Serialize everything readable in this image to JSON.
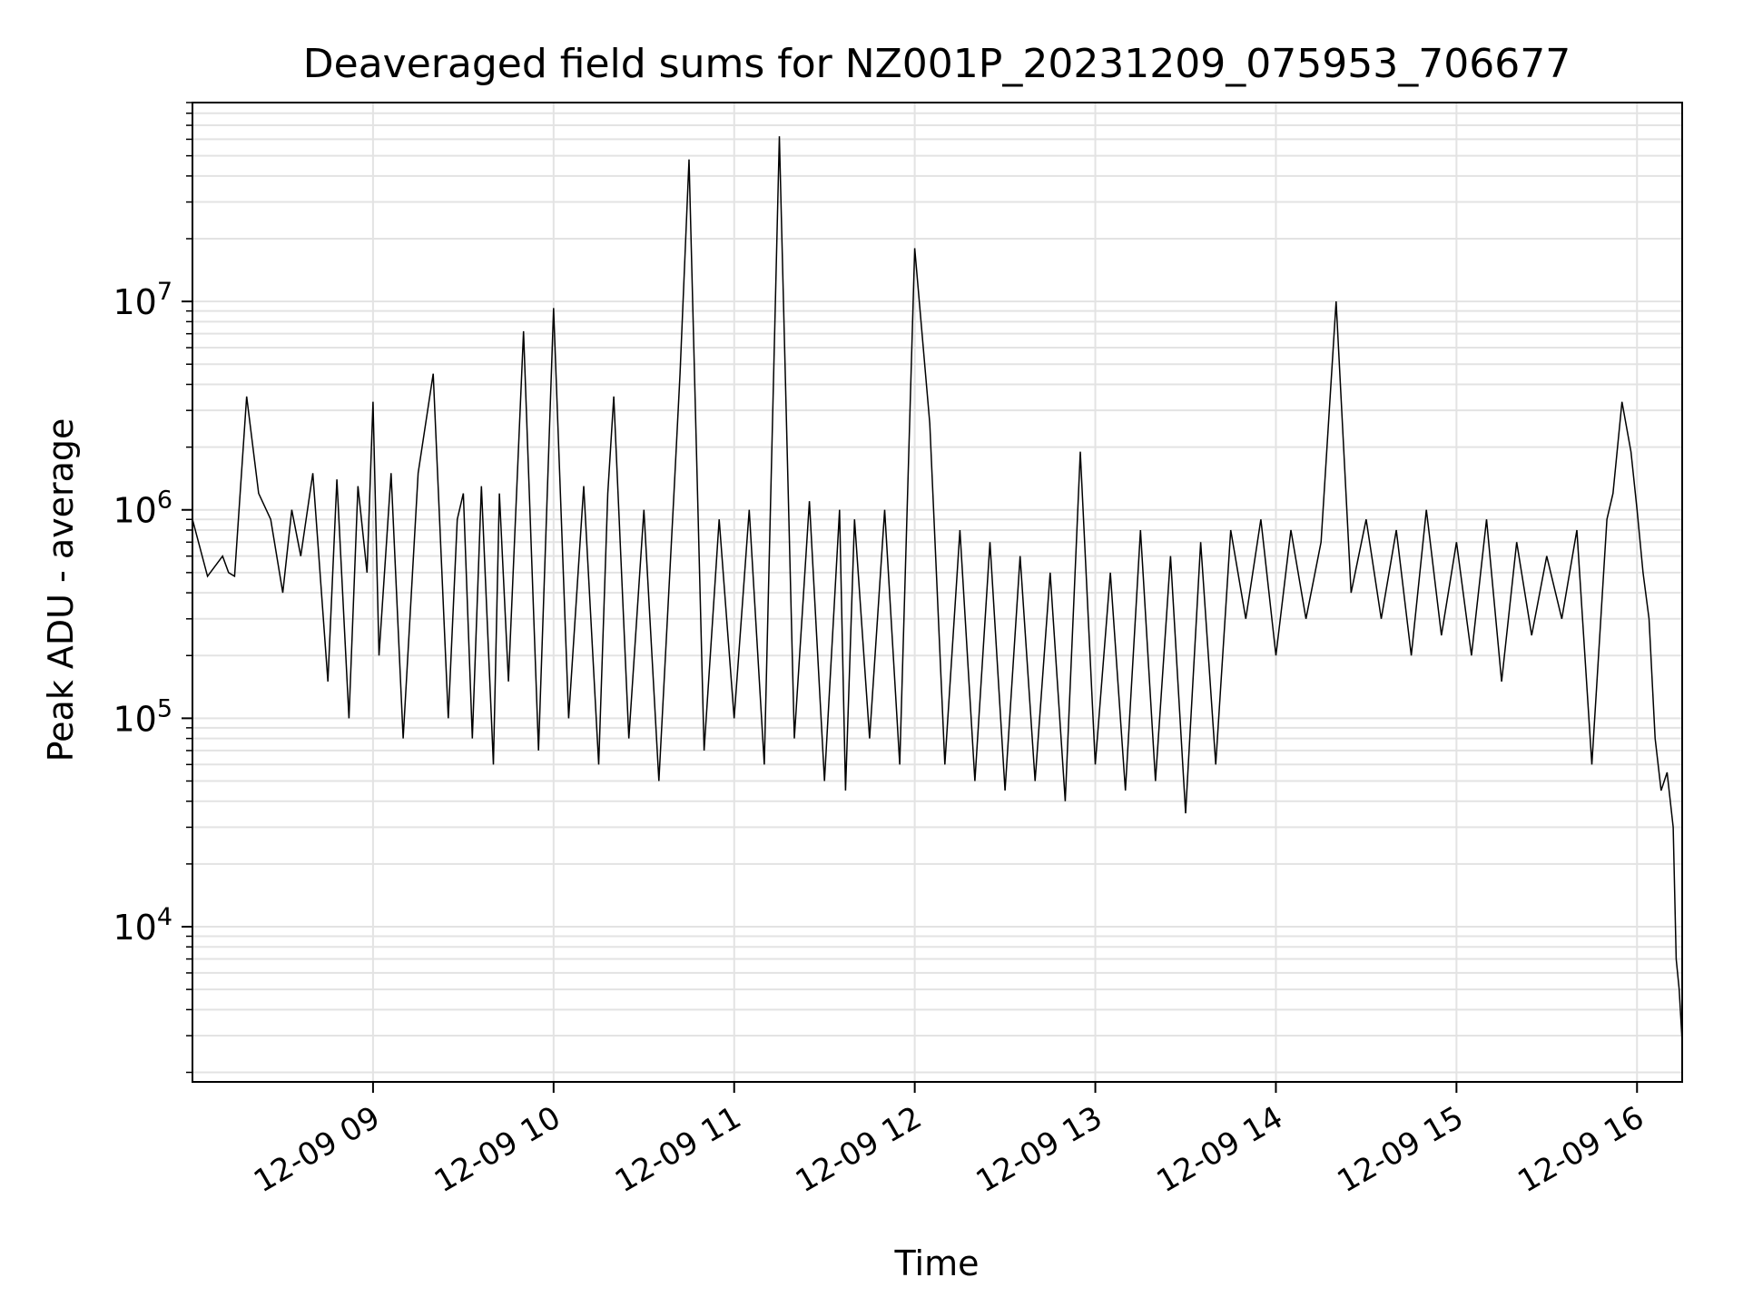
{
  "chart_data": {
    "type": "line",
    "title": "Deaveraged field sums for NZ001P_20231209_075953_706677",
    "xlabel": "Time",
    "ylabel": "Peak ADU - average",
    "xscale": "time",
    "yscale": "log",
    "xlim": [
      "2023-12-09 08:00",
      "2023-12-09 16:15"
    ],
    "ylim": [
      1800,
      90000000
    ],
    "grid": true,
    "line_color": "#000000",
    "x_ticks": [
      {
        "value": "2023-12-09 09:00",
        "label": "12-09 09"
      },
      {
        "value": "2023-12-09 10:00",
        "label": "12-09 10"
      },
      {
        "value": "2023-12-09 11:00",
        "label": "12-09 11"
      },
      {
        "value": "2023-12-09 12:00",
        "label": "12-09 12"
      },
      {
        "value": "2023-12-09 13:00",
        "label": "12-09 13"
      },
      {
        "value": "2023-12-09 14:00",
        "label": "12-09 14"
      },
      {
        "value": "2023-12-09 15:00",
        "label": "12-09 15"
      },
      {
        "value": "2023-12-09 16:00",
        "label": "12-09 16"
      }
    ],
    "y_ticks": [
      {
        "value": 10000,
        "base": "10",
        "exp": "4"
      },
      {
        "value": 100000,
        "base": "10",
        "exp": "5"
      },
      {
        "value": 1000000,
        "base": "10",
        "exp": "6"
      },
      {
        "value": 10000000,
        "base": "10",
        "exp": "7"
      }
    ],
    "series": [
      {
        "x": [
          "2023-12-09 08:00",
          "2023-12-09 08:05",
          "2023-12-09 08:10",
          "2023-12-09 08:12",
          "2023-12-09 08:14",
          "2023-12-09 08:18",
          "2023-12-09 08:22",
          "2023-12-09 08:26",
          "2023-12-09 08:30",
          "2023-12-09 08:33",
          "2023-12-09 08:36",
          "2023-12-09 08:40",
          "2023-12-09 08:45",
          "2023-12-09 08:48",
          "2023-12-09 08:52",
          "2023-12-09 08:55",
          "2023-12-09 08:58",
          "2023-12-09 09:00",
          "2023-12-09 09:02",
          "2023-12-09 09:06",
          "2023-12-09 09:10",
          "2023-12-09 09:15",
          "2023-12-09 09:20",
          "2023-12-09 09:25",
          "2023-12-09 09:28",
          "2023-12-09 09:30",
          "2023-12-09 09:33",
          "2023-12-09 09:36",
          "2023-12-09 09:40",
          "2023-12-09 09:42",
          "2023-12-09 09:45",
          "2023-12-09 09:50",
          "2023-12-09 09:55",
          "2023-12-09 10:00",
          "2023-12-09 10:05",
          "2023-12-09 10:10",
          "2023-12-09 10:15",
          "2023-12-09 10:18",
          "2023-12-09 10:20",
          "2023-12-09 10:25",
          "2023-12-09 10:30",
          "2023-12-09 10:35",
          "2023-12-09 10:40",
          "2023-12-09 10:42",
          "2023-12-09 10:45",
          "2023-12-09 10:50",
          "2023-12-09 10:55",
          "2023-12-09 11:00",
          "2023-12-09 11:05",
          "2023-12-09 11:10",
          "2023-12-09 11:15",
          "2023-12-09 11:20",
          "2023-12-09 11:25",
          "2023-12-09 11:30",
          "2023-12-09 11:35",
          "2023-12-09 11:37",
          "2023-12-09 11:40",
          "2023-12-09 11:45",
          "2023-12-09 11:50",
          "2023-12-09 11:55",
          "2023-12-09 12:00",
          "2023-12-09 12:05",
          "2023-12-09 12:10",
          "2023-12-09 12:15",
          "2023-12-09 12:20",
          "2023-12-09 12:25",
          "2023-12-09 12:30",
          "2023-12-09 12:35",
          "2023-12-09 12:40",
          "2023-12-09 12:45",
          "2023-12-09 12:50",
          "2023-12-09 12:55",
          "2023-12-09 13:00",
          "2023-12-09 13:05",
          "2023-12-09 13:10",
          "2023-12-09 13:15",
          "2023-12-09 13:20",
          "2023-12-09 13:25",
          "2023-12-09 13:30",
          "2023-12-09 13:35",
          "2023-12-09 13:40",
          "2023-12-09 13:45",
          "2023-12-09 13:50",
          "2023-12-09 13:55",
          "2023-12-09 14:00",
          "2023-12-09 14:05",
          "2023-12-09 14:10",
          "2023-12-09 14:15",
          "2023-12-09 14:20",
          "2023-12-09 14:25",
          "2023-12-09 14:30",
          "2023-12-09 14:35",
          "2023-12-09 14:40",
          "2023-12-09 14:45",
          "2023-12-09 14:50",
          "2023-12-09 14:55",
          "2023-12-09 15:00",
          "2023-12-09 15:05",
          "2023-12-09 15:10",
          "2023-12-09 15:15",
          "2023-12-09 15:20",
          "2023-12-09 15:25",
          "2023-12-09 15:30",
          "2023-12-09 15:35",
          "2023-12-09 15:40",
          "2023-12-09 15:45",
          "2023-12-09 15:50",
          "2023-12-09 15:52",
          "2023-12-09 15:55",
          "2023-12-09 15:58",
          "2023-12-09 16:00",
          "2023-12-09 16:02",
          "2023-12-09 16:04",
          "2023-12-09 16:06",
          "2023-12-09 16:08",
          "2023-12-09 16:10",
          "2023-12-09 16:12",
          "2023-12-09 16:13",
          "2023-12-09 16:14",
          "2023-12-09 16:15"
        ],
        "y": [
          900000,
          480000,
          600000,
          500000,
          480000,
          3500000,
          1200000,
          900000,
          400000,
          1000000,
          600000,
          1500000,
          150000,
          1400000,
          100000,
          1300000,
          500000,
          3300000,
          200000,
          1500000,
          80000,
          1500000,
          4500000,
          100000,
          900000,
          1200000,
          80000,
          1300000,
          60000,
          1200000,
          150000,
          7200000,
          70000,
          9300000,
          100000,
          1300000,
          60000,
          1200000,
          3500000,
          80000,
          1000000,
          50000,
          1200000,
          4500000,
          48000000,
          70000,
          900000,
          100000,
          1000000,
          60000,
          62000000,
          80000,
          1100000,
          50000,
          1000000,
          45000,
          900000,
          80000,
          1000000,
          60000,
          18000000,
          2600000,
          60000,
          800000,
          50000,
          700000,
          45000,
          600000,
          50000,
          500000,
          40000,
          1900000,
          60000,
          500000,
          45000,
          800000,
          50000,
          600000,
          35000,
          700000,
          60000,
          800000,
          300000,
          900000,
          200000,
          800000,
          300000,
          700000,
          10000000,
          400000,
          900000,
          300000,
          800000,
          200000,
          1000000,
          250000,
          700000,
          200000,
          900000,
          150000,
          700000,
          250000,
          600000,
          300000,
          800000,
          60000,
          900000,
          1200000,
          3300000,
          1900000,
          1000000,
          500000,
          300000,
          80000,
          45000,
          55000,
          30000,
          7000,
          5000,
          2800
        ]
      }
    ]
  }
}
